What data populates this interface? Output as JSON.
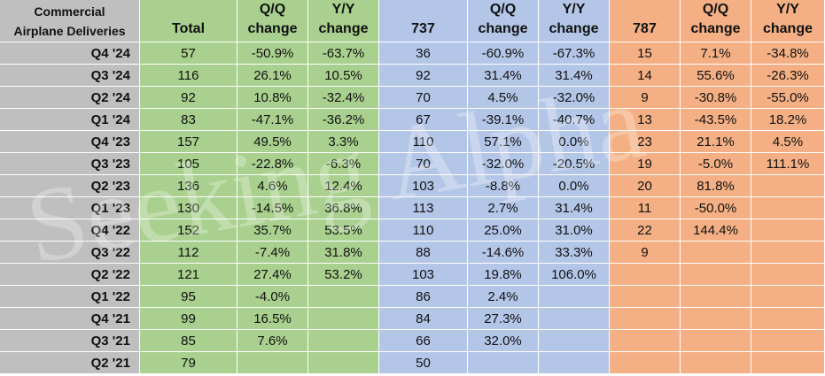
{
  "table": {
    "watermark": "Seeking Alpha",
    "header": [
      [
        "Commercial",
        "Airplane Deliveries"
      ],
      [
        "Total"
      ],
      [
        "Q/Q",
        "change"
      ],
      [
        "Y/Y",
        "change"
      ],
      [
        "737"
      ],
      [
        "Q/Q",
        "change"
      ],
      [
        "Y/Y",
        "change"
      ],
      [
        "787"
      ],
      [
        "Q/Q",
        "change"
      ],
      [
        "Y/Y",
        "change"
      ]
    ],
    "rows": [
      [
        "Q4 '24",
        57,
        "-50.9%",
        "-63.7%",
        36,
        "-60.9%",
        "-67.3%",
        15,
        "7.1%",
        "-34.8%"
      ],
      [
        "Q3 '24",
        116,
        "26.1%",
        "10.5%",
        92,
        "31.4%",
        "31.4%",
        14,
        "55.6%",
        "-26.3%"
      ],
      [
        "Q2 '24",
        92,
        "10.8%",
        "-32.4%",
        70,
        "4.5%",
        "-32.0%",
        9,
        "-30.8%",
        "-55.0%"
      ],
      [
        "Q1 '24",
        83,
        "-47.1%",
        "-36.2%",
        67,
        "-39.1%",
        "-40.7%",
        13,
        "-43.5%",
        "18.2%"
      ],
      [
        "Q4 '23",
        157,
        "49.5%",
        "3.3%",
        110,
        "57.1%",
        "0.0%",
        23,
        "21.1%",
        "4.5%"
      ],
      [
        "Q3 '23",
        105,
        "-22.8%",
        "-6.3%",
        70,
        "-32.0%",
        "-20.5%",
        19,
        "-5.0%",
        "111.1%"
      ],
      [
        "Q2 '23",
        136,
        "4.6%",
        "12.4%",
        103,
        "-8.8%",
        "0.0%",
        20,
        "81.8%",
        null
      ],
      [
        "Q1 '23",
        130,
        "-14.5%",
        "36.8%",
        113,
        "2.7%",
        "31.4%",
        11,
        "-50.0%",
        null
      ],
      [
        "Q4 '22",
        152,
        "35.7%",
        "53.5%",
        110,
        "25.0%",
        "31.0%",
        22,
        "144.4%",
        null
      ],
      [
        "Q3 '22",
        112,
        "-7.4%",
        "31.8%",
        88,
        "-14.6%",
        "33.3%",
        9,
        null,
        null
      ],
      [
        "Q2 '22",
        121,
        "27.4%",
        "53.2%",
        103,
        "19.8%",
        "106.0%",
        null,
        null,
        null
      ],
      [
        "Q1 '22",
        95,
        "-4.0%",
        null,
        86,
        "2.4%",
        null,
        null,
        null,
        null
      ],
      [
        "Q4 '21",
        99,
        "16.5%",
        null,
        84,
        "27.3%",
        null,
        null,
        null,
        null
      ],
      [
        "Q3 '21",
        85,
        "7.6%",
        null,
        66,
        "32.0%",
        null,
        null,
        null,
        null
      ],
      [
        "Q2 '21",
        79,
        null,
        null,
        50,
        null,
        null,
        null,
        null,
        null
      ]
    ]
  }
}
